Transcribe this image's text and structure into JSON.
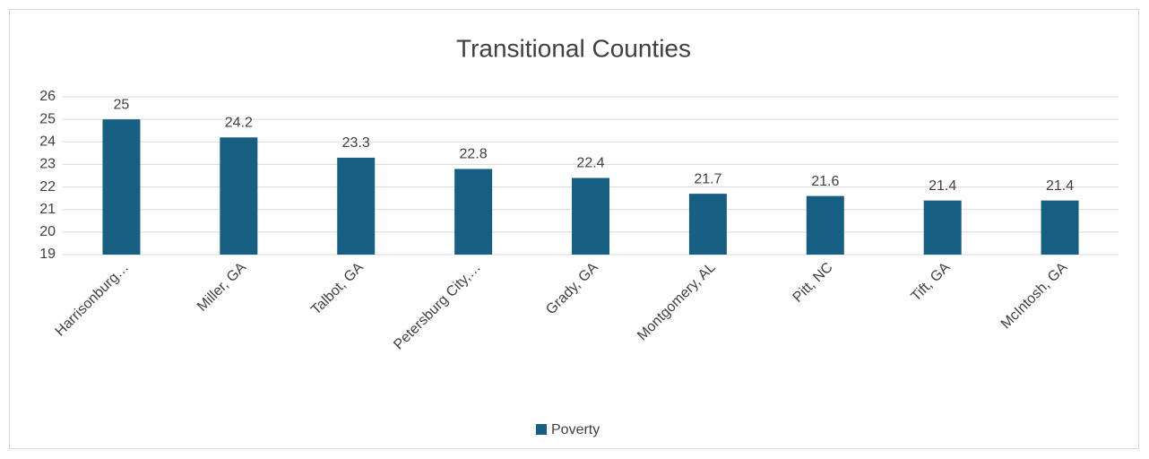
{
  "chart_data": {
    "type": "bar",
    "title": "Transitional Counties",
    "categories": [
      "Harrisonburg…",
      "Miller, GA",
      "Talbot, GA",
      "Petersburg City,…",
      "Grady, GA",
      "Montgomery, AL",
      "Pitt, NC",
      "Tift, GA",
      "McIntosh, GA"
    ],
    "series": [
      {
        "name": "Poverty",
        "color": "#165f82",
        "values": [
          25,
          24.2,
          23.3,
          22.8,
          22.4,
          21.7,
          21.6,
          21.4,
          21.4
        ]
      }
    ],
    "ylim": [
      19,
      26
    ],
    "yticks": [
      19,
      20,
      21,
      22,
      23,
      24,
      25,
      26
    ],
    "grid": true,
    "legend": "bottom"
  }
}
